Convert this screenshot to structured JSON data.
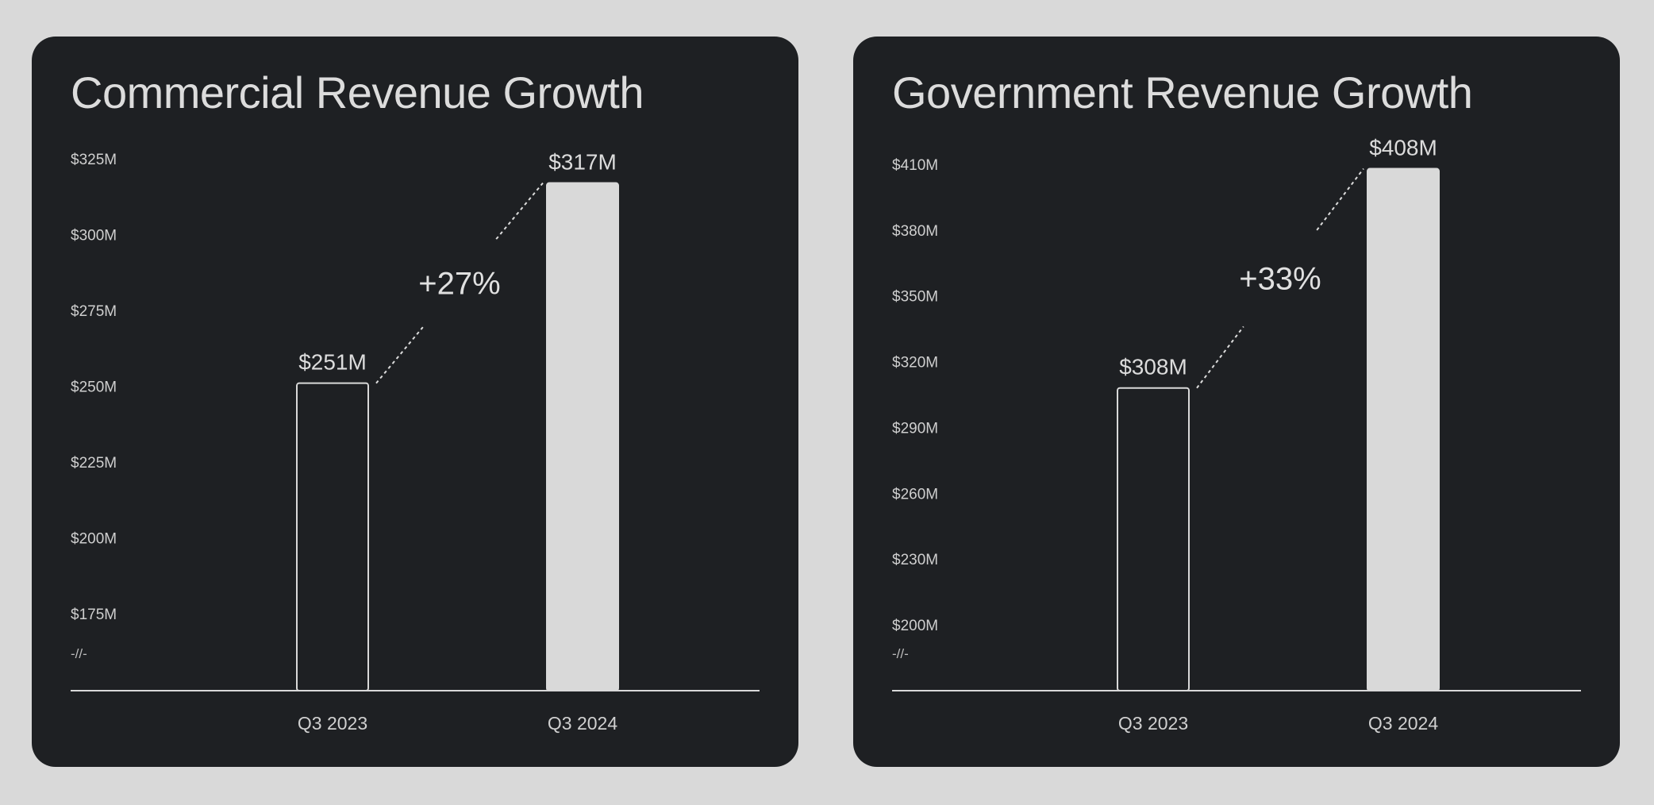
{
  "chart_data": [
    {
      "type": "bar",
      "title": "Commercial Revenue Growth",
      "categories": [
        "Q3 2023",
        "Q3 2024"
      ],
      "values": [
        251,
        317
      ],
      "value_labels": [
        "$251M",
        "$317M"
      ],
      "unit": "$M",
      "ylim": [
        175,
        325
      ],
      "yticks": [
        175,
        200,
        225,
        250,
        275,
        300,
        325
      ],
      "ytick_labels": [
        "$175M",
        "$200M",
        "$225M",
        "$250M",
        "$275M",
        "$300M",
        "$325M"
      ],
      "axis_break": "-//-",
      "growth_label": "+27%",
      "bar_styles": [
        "outline",
        "filled"
      ],
      "xlabel": "",
      "ylabel": "",
      "grid": false
    },
    {
      "type": "bar",
      "title": "Government Revenue Growth",
      "categories": [
        "Q3 2023",
        "Q3 2024"
      ],
      "values": [
        308,
        408
      ],
      "value_labels": [
        "$308M",
        "$408M"
      ],
      "unit": "$M",
      "ylim": [
        200,
        410
      ],
      "yticks": [
        200,
        230,
        260,
        290,
        320,
        350,
        380,
        410
      ],
      "ytick_labels": [
        "$200M",
        "$230M",
        "$260M",
        "$290M",
        "$320M",
        "$350M",
        "$380M",
        "$410M"
      ],
      "axis_break": "-//-",
      "growth_label": "+33%",
      "bar_styles": [
        "outline",
        "filled"
      ],
      "xlabel": "",
      "ylabel": "",
      "grid": false
    }
  ],
  "colors": {
    "page_background": "#d9d9d9",
    "panel_background": "#1e2023",
    "bar_fill": "#d9d9d9",
    "bar_outline": "#d9d9d9",
    "text": "#dcdcdc"
  }
}
